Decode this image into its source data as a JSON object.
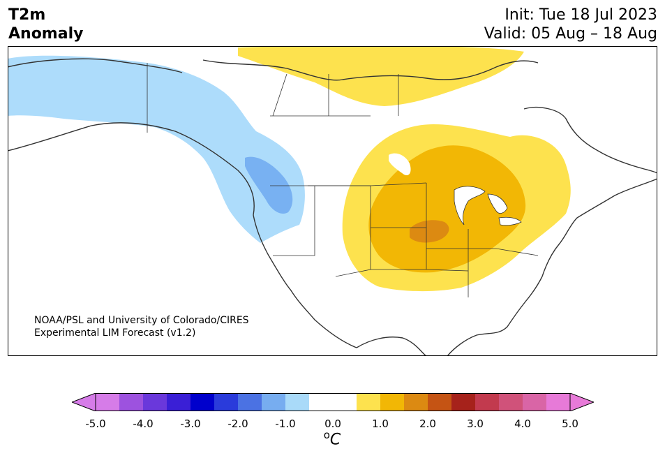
{
  "title": {
    "variable_line1": "T2m",
    "variable_line2": "Anomaly",
    "init": "Init: Tue 18 Jul 2023",
    "valid": "Valid: 05 Aug – 18 Aug"
  },
  "credit": {
    "line1": "NOAA/PSL and University of Colorado/CIRES",
    "line2": "Experimental LIM Forecast (v1.2)"
  },
  "colorbar": {
    "unit_superscript": "o",
    "unit_symbol": "C",
    "tick_labels": [
      "-5.0",
      "-4.0",
      "-3.0",
      "-2.0",
      "-1.0",
      "0.0",
      "1.0",
      "2.0",
      "3.0",
      "4.0",
      "5.0"
    ],
    "colors": [
      "#d67ce8",
      "#9d52df",
      "#6a38db",
      "#3a1fd6",
      "#0000cc",
      "#2a3bdb",
      "#4b72e3",
      "#77adf0",
      "#a9daf9",
      "#ffffff",
      "#ffffff",
      "#fde24e",
      "#f2b705",
      "#dc8a12",
      "#c55414",
      "#a6221b",
      "#c23a4e",
      "#d0527a",
      "#d965a6",
      "#e77ad8"
    ]
  },
  "map": {
    "region": "North America",
    "colors": {
      "ocean": "#ffffff",
      "coast": "#333333",
      "cold_light": "#addcfb",
      "cold_medium": "#78b1f2",
      "warm_light": "#fde24e",
      "warm_medium": "#f2b705",
      "warm_strong": "#dc8a12"
    }
  }
}
